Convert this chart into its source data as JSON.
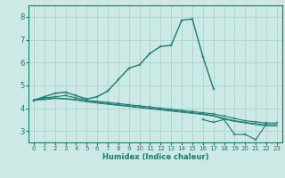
{
  "xlabel": "Humidex (Indice chaleur)",
  "background_color": "#cce9e5",
  "grid_color": "#aad4cf",
  "line_color": "#1a7a6e",
  "x_values": [
    0,
    1,
    2,
    3,
    4,
    5,
    6,
    7,
    8,
    9,
    10,
    11,
    12,
    13,
    14,
    15,
    16,
    17,
    18,
    19,
    20,
    21,
    22,
    23
  ],
  "series_main": [
    4.35,
    4.5,
    4.65,
    4.7,
    4.55,
    4.4,
    4.5,
    4.75,
    5.25,
    5.75,
    5.9,
    6.4,
    6.7,
    6.75,
    7.85,
    7.9,
    6.25,
    4.85,
    null,
    null,
    null,
    null,
    null,
    null
  ],
  "series_a": [
    4.35,
    4.45,
    4.5,
    4.55,
    4.45,
    4.35,
    4.3,
    4.25,
    4.2,
    4.15,
    4.1,
    4.05,
    4.0,
    3.95,
    3.9,
    3.85,
    3.8,
    3.75,
    3.65,
    3.55,
    3.45,
    3.4,
    3.35,
    3.35
  ],
  "series_b": [
    4.35,
    4.4,
    4.45,
    4.42,
    4.38,
    4.3,
    4.25,
    4.2,
    4.15,
    4.1,
    4.05,
    4.0,
    3.95,
    3.9,
    3.85,
    3.8,
    3.75,
    3.68,
    3.55,
    3.45,
    3.38,
    3.32,
    3.28,
    3.28
  ],
  "series_c": [
    4.35,
    4.37,
    4.42,
    4.4,
    4.35,
    4.28,
    4.22,
    4.17,
    4.12,
    4.07,
    4.02,
    3.97,
    3.92,
    3.87,
    3.82,
    3.77,
    3.72,
    3.65,
    3.52,
    3.42,
    3.35,
    3.28,
    3.22,
    3.22
  ],
  "series_low": [
    null,
    null,
    null,
    null,
    null,
    null,
    null,
    null,
    null,
    null,
    null,
    null,
    null,
    null,
    null,
    null,
    3.5,
    3.38,
    3.5,
    2.85,
    2.85,
    2.62,
    3.3,
    null
  ],
  "xlim": [
    -0.5,
    23.5
  ],
  "ylim": [
    2.5,
    8.5
  ],
  "yticks": [
    3,
    4,
    5,
    6,
    7,
    8
  ],
  "xticks": [
    0,
    1,
    2,
    3,
    4,
    5,
    6,
    7,
    8,
    9,
    10,
    11,
    12,
    13,
    14,
    15,
    16,
    17,
    18,
    19,
    20,
    21,
    22,
    23
  ]
}
